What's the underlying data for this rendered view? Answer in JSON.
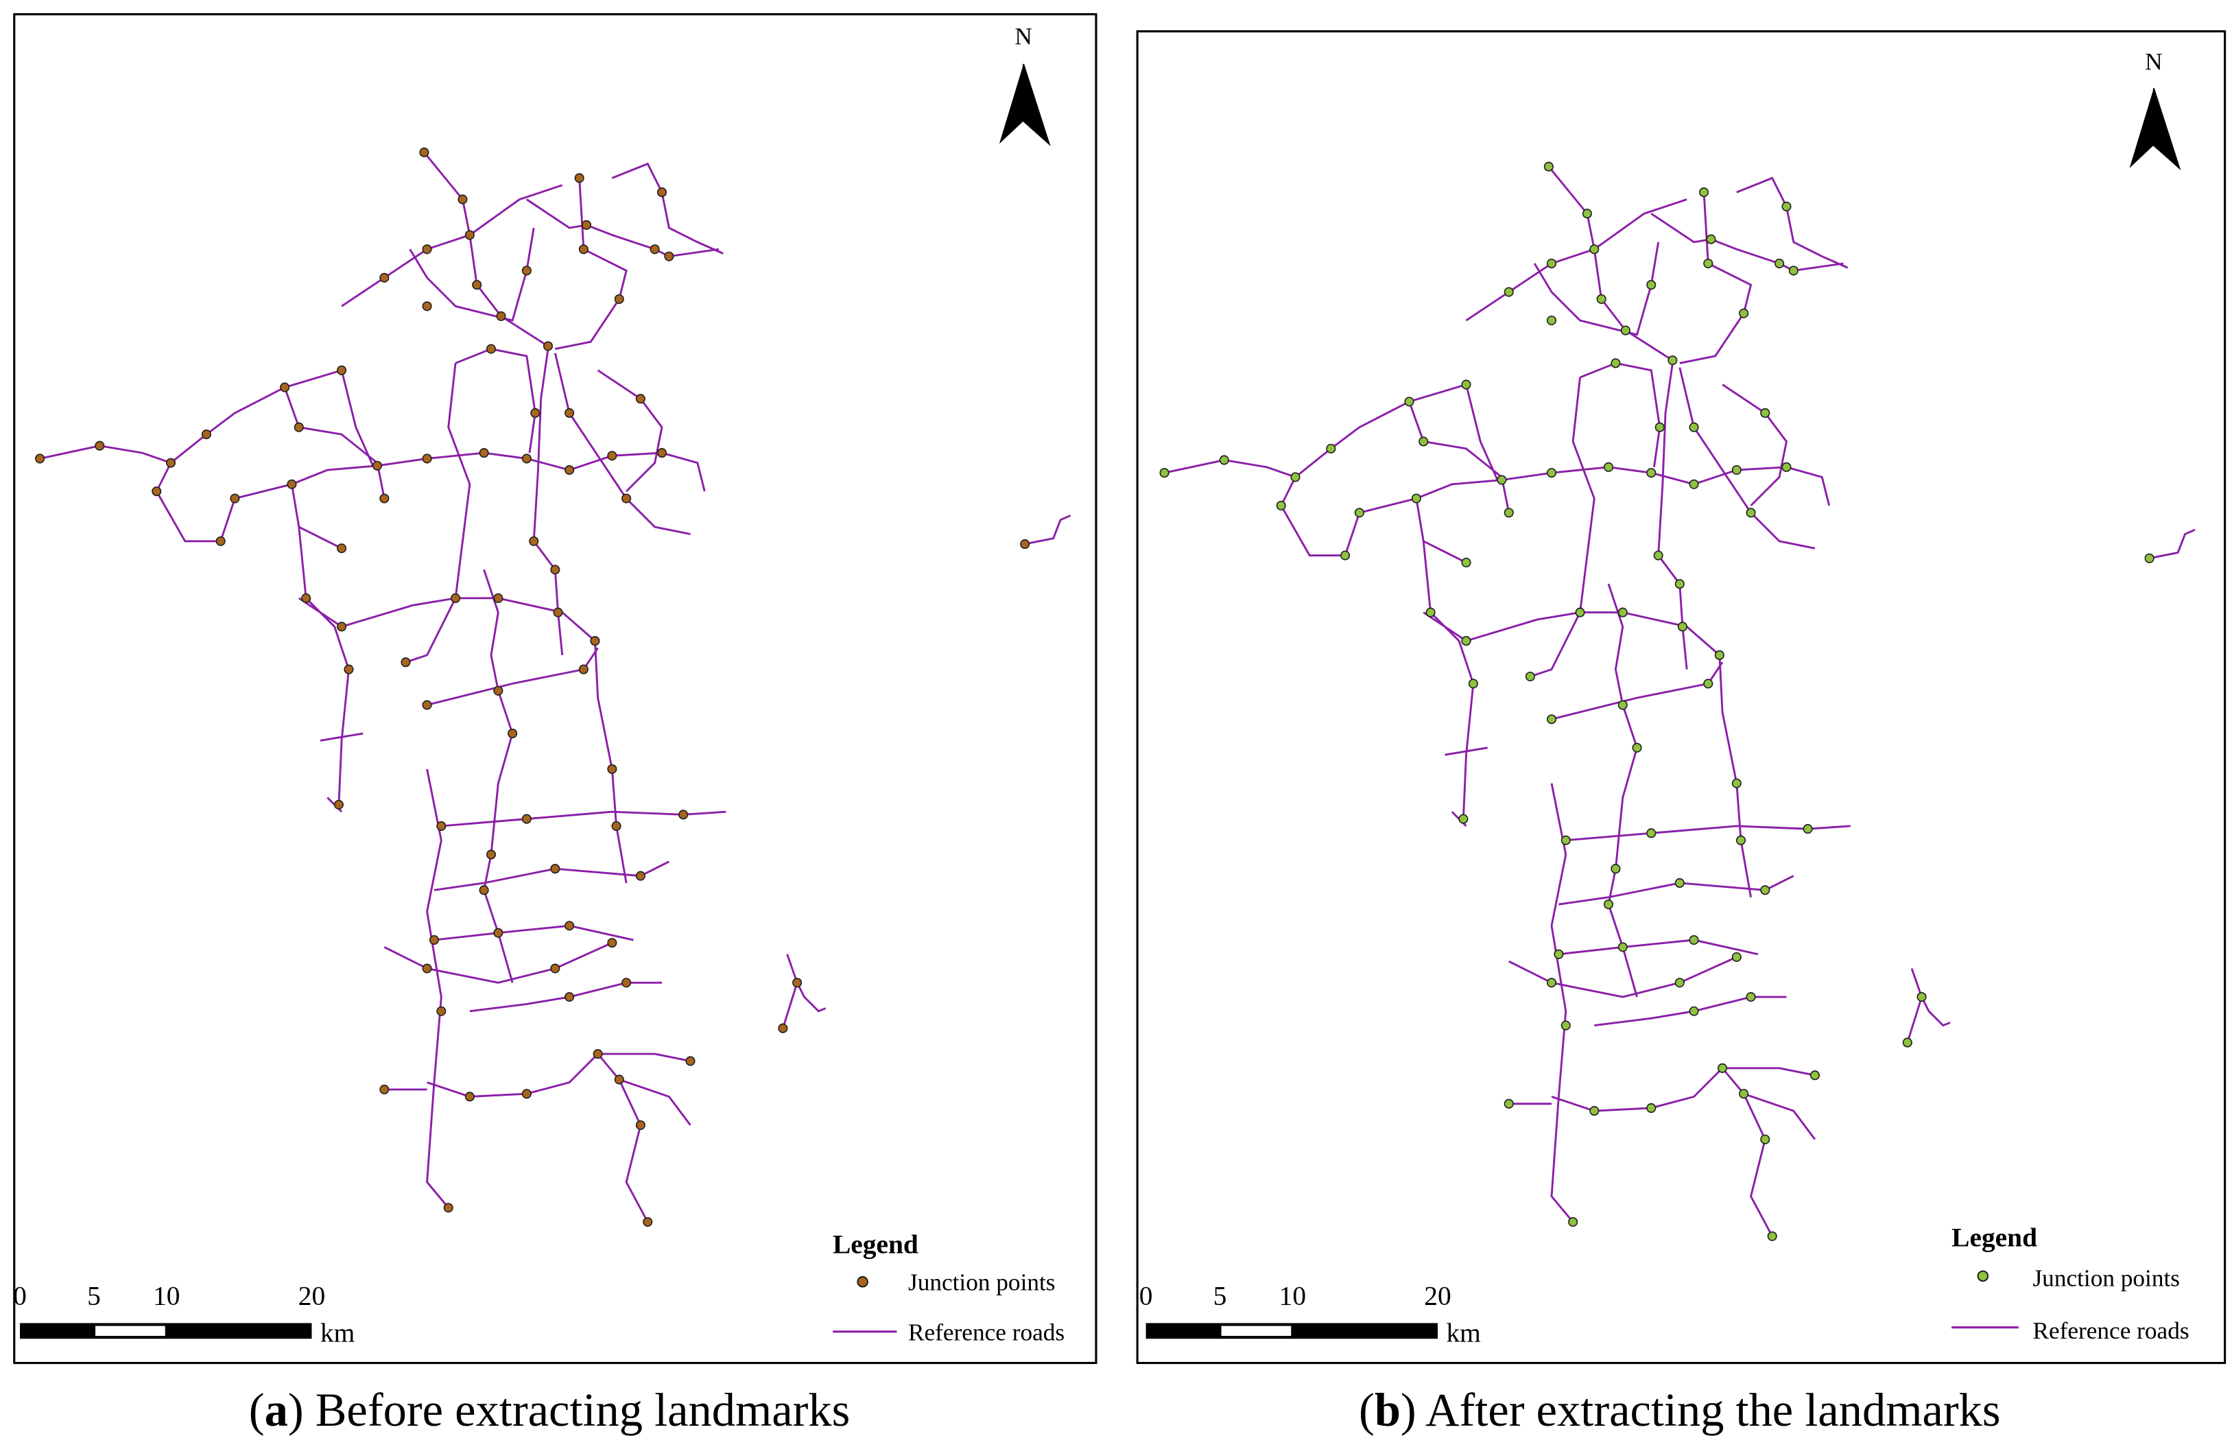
{
  "panels": [
    {
      "north": "N",
      "legend": {
        "title": "Legend",
        "items": [
          "Junction points",
          "Reference roads"
        ]
      },
      "scale": {
        "ticks": [
          0,
          5,
          10,
          20
        ],
        "unit": "km"
      },
      "caption": {
        "open": "(",
        "letter": "a",
        "rest": ") Before extracting landmarks"
      }
    },
    {
      "north": "N",
      "legend": {
        "title": "Legend",
        "items": [
          "Junction points",
          "Reference roads"
        ]
      },
      "scale": {
        "ticks": [
          0,
          5,
          10,
          20
        ],
        "unit": "km"
      },
      "caption": {
        "open": "(",
        "letter": "b",
        "rest": ") After extracting the landmarks"
      }
    }
  ]
}
